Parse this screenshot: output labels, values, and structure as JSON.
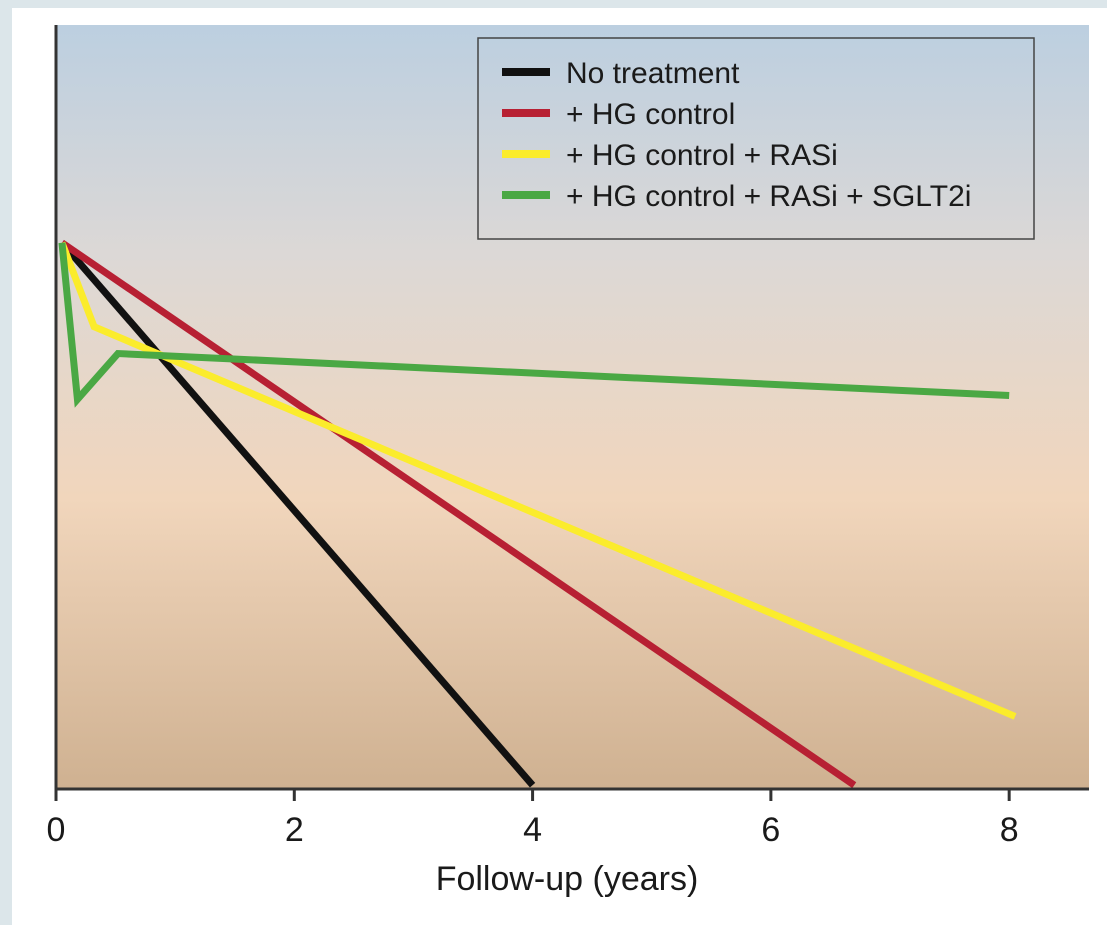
{
  "chart_data": {
    "type": "line",
    "title": "",
    "xlabel": "Follow-up (years)",
    "ylabel": "",
    "xlim": [
      0,
      8.67
    ],
    "ylim": [
      0,
      100
    ],
    "x_ticks": [
      0,
      2,
      4,
      6,
      8
    ],
    "x_tick_labels": [
      "0",
      "2",
      "4",
      "6",
      "8"
    ],
    "y_ticks_shown": false,
    "grid": false,
    "legend_position": "top-right",
    "background": "vertical gradient from light blue (top) through peach to tan (bottom)",
    "series": [
      {
        "name": "No treatment",
        "color": "#111111",
        "points": [
          [
            0.05,
            71.5
          ],
          [
            4.0,
            0.5
          ]
        ]
      },
      {
        "name": "+ HG control",
        "color": "#b72033",
        "points": [
          [
            0.05,
            71.5
          ],
          [
            6.7,
            0.5
          ]
        ]
      },
      {
        "name": "+ HG control + RASi",
        "color": "#fbec2c",
        "points": [
          [
            0.05,
            71.5
          ],
          [
            0.32,
            60.5
          ],
          [
            8.05,
            9.5
          ]
        ]
      },
      {
        "name": "+ HG control + RASi + SGLT2i",
        "color": "#4aa844",
        "points": [
          [
            0.05,
            71.5
          ],
          [
            0.18,
            51.0
          ],
          [
            0.52,
            57.0
          ],
          [
            8.0,
            51.5
          ]
        ]
      }
    ]
  }
}
